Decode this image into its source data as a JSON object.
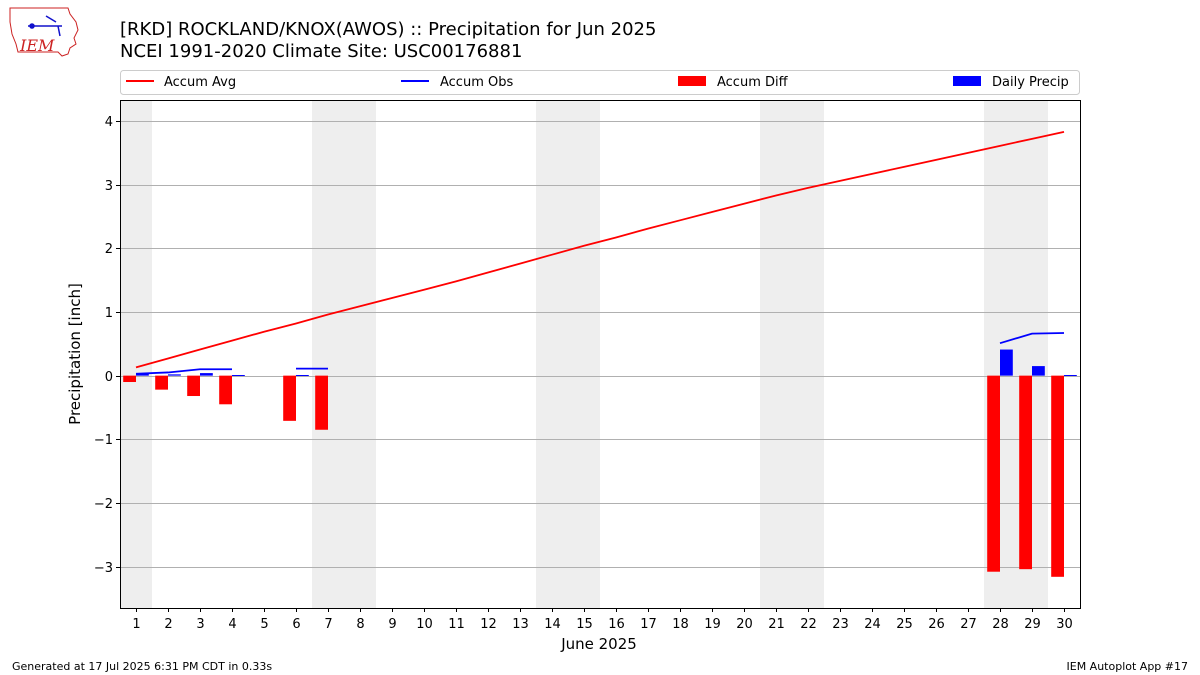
{
  "header": {
    "title": "[RKD] ROCKLAND/KNOX(AWOS) :: Precipitation for Jun 2025",
    "subtitle": "NCEI 1991-2020 Climate Site: USC00176881",
    "logo_text": "IEM"
  },
  "footer": {
    "generated": "Generated at 17 Jul 2025 6:31 PM CDT in 0.33s",
    "app": "IEM Autoplot App #17"
  },
  "chart_data": {
    "type": "bar",
    "title": "[RKD] ROCKLAND/KNOX(AWOS) :: Precipitation for Jun 2025",
    "subtitle": "NCEI 1991-2020 Climate Site: USC00176881",
    "xlabel": "June 2025",
    "ylabel": "Precipitation [inch]",
    "xlim": [
      0.5,
      30.5
    ],
    "ylim": [
      -3.65,
      4.33
    ],
    "yticks": [
      -3,
      -2,
      -1,
      0,
      1,
      2,
      3,
      4
    ],
    "ytick_labels": [
      "−3",
      "−2",
      "−1",
      "0",
      "1",
      "2",
      "3",
      "4"
    ],
    "days": [
      1,
      2,
      3,
      4,
      5,
      6,
      7,
      8,
      9,
      10,
      11,
      12,
      13,
      14,
      15,
      16,
      17,
      18,
      19,
      20,
      21,
      22,
      23,
      24,
      25,
      26,
      27,
      28,
      29,
      30
    ],
    "weekend_shading": [
      [
        0.5,
        1.5
      ],
      [
        6.5,
        8.5
      ],
      [
        13.5,
        15.5
      ],
      [
        20.5,
        22.5
      ],
      [
        27.5,
        29.5
      ]
    ],
    "grid": "horizontal",
    "legend_position": "top",
    "series": [
      {
        "name": "Accum Avg",
        "kind": "line",
        "color": "#ff0000",
        "x": [
          1,
          2,
          3,
          4,
          5,
          6,
          7,
          8,
          9,
          10,
          11,
          12,
          13,
          14,
          15,
          16,
          17,
          18,
          19,
          20,
          21,
          22,
          23,
          24,
          25,
          26,
          27,
          28,
          29,
          30
        ],
        "values": [
          0.13,
          0.27,
          0.41,
          0.55,
          0.69,
          0.82,
          0.96,
          1.09,
          1.22,
          1.35,
          1.48,
          1.62,
          1.76,
          1.9,
          2.04,
          2.17,
          2.31,
          2.44,
          2.57,
          2.7,
          2.83,
          2.95,
          3.06,
          3.17,
          3.28,
          3.39,
          3.5,
          3.61,
          3.72,
          3.83
        ]
      },
      {
        "name": "Accum Obs",
        "kind": "line",
        "color": "#0000ff",
        "segments": [
          {
            "x": [
              1,
              2,
              3,
              4
            ],
            "values": [
              0.03,
              0.05,
              0.1,
              0.1
            ]
          },
          {
            "x": [
              6,
              7
            ],
            "values": [
              0.11,
              0.11
            ]
          },
          {
            "x": [
              28,
              29,
              30
            ],
            "values": [
              0.51,
              0.66,
              0.67
            ]
          }
        ]
      },
      {
        "name": "Accum Diff",
        "kind": "bar",
        "color": "#ff0000",
        "offset": -0.2,
        "x": [
          1,
          2,
          3,
          4,
          6,
          7,
          28,
          29,
          30
        ],
        "values": [
          -0.1,
          -0.22,
          -0.32,
          -0.45,
          -0.71,
          -0.85,
          -3.08,
          -3.04,
          -3.16
        ]
      },
      {
        "name": "Daily Precip",
        "kind": "bar",
        "color": "#0000ff",
        "offset": 0.2,
        "x": [
          1,
          2,
          3,
          4,
          6,
          28,
          29,
          30
        ],
        "values": [
          0.03,
          0.02,
          0.04,
          0.01,
          0.01,
          0.41,
          0.15,
          0.01
        ]
      }
    ]
  }
}
